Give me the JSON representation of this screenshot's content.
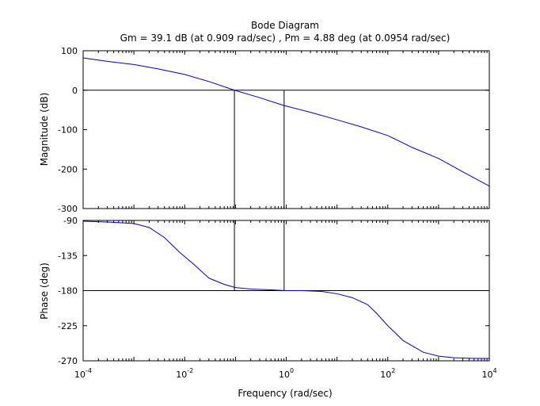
{
  "chart_data": {
    "type": "line",
    "title": "Bode Diagram",
    "subtitle": "Gm = 39.1 dB (at 0.909 rad/sec) ,  Pm = 4.88 deg (at 0.0954 rad/sec)",
    "xlabel": "Frequency  (rad/sec)",
    "x_scale": "log",
    "xlim": [
      0.0001,
      10000
    ],
    "x_tick_labels": [
      {
        "base": "10",
        "exp": "-4"
      },
      {
        "base": "10",
        "exp": "-2"
      },
      {
        "base": "10",
        "exp": "0"
      },
      {
        "base": "10",
        "exp": "2"
      },
      {
        "base": "10",
        "exp": "4"
      }
    ],
    "grid": false,
    "line_color": "#0000cc",
    "marker_color": "#000000",
    "gain_margin_frequency": 0.909,
    "phase_margin_frequency": 0.0954,
    "magnitude": {
      "ylabel": "Magnitude (dB)",
      "ylim": [
        -300,
        100
      ],
      "yticks": [
        100,
        0,
        -100,
        -200,
        -300
      ],
      "reference": 0,
      "series": [
        {
          "x": [
            0.0001,
            0.0003,
            0.001,
            0.003,
            0.01,
            0.03,
            0.0954,
            0.3,
            0.909,
            3,
            10,
            30,
            100,
            300,
            1000,
            3000,
            10000
          ],
          "y": [
            82,
            73,
            65,
            54,
            40,
            22,
            0,
            -19,
            -39,
            -56,
            -75,
            -93,
            -115,
            -145,
            -173,
            -207,
            -243
          ]
        }
      ]
    },
    "phase": {
      "ylabel": "Phase (deg)",
      "ylim": [
        -270,
        -90
      ],
      "yticks": [
        -90,
        -135,
        -180,
        -225,
        -270
      ],
      "reference": -180,
      "series": [
        {
          "x": [
            0.0001,
            0.0003,
            0.001,
            0.002,
            0.004,
            0.008,
            0.015,
            0.03,
            0.06,
            0.1,
            0.2,
            0.5,
            1,
            2,
            5,
            10,
            20,
            40,
            60,
            100,
            200,
            500,
            1000,
            2000,
            5000,
            10000
          ],
          "y": [
            -91,
            -92,
            -94,
            -99,
            -112,
            -131,
            -146,
            -164,
            -172,
            -176,
            -178,
            -179,
            -180,
            -180,
            -181,
            -184,
            -189,
            -198,
            -209,
            -225,
            -244,
            -259,
            -264,
            -266,
            -267,
            -267
          ]
        }
      ]
    }
  }
}
